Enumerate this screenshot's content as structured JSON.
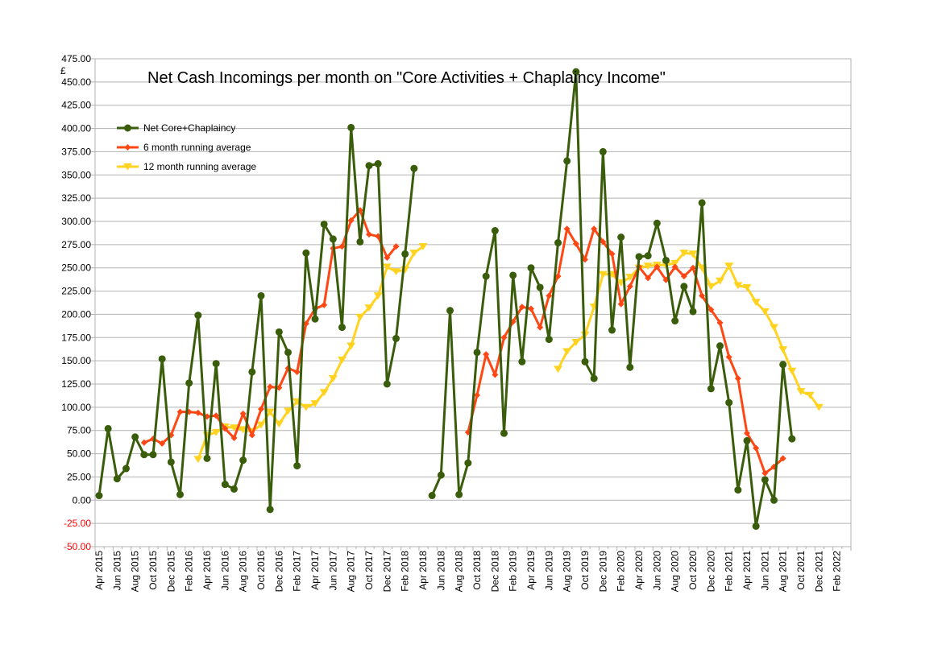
{
  "chart_data": {
    "type": "line",
    "title": "Net Cash Incomings per month on \"Core Activities + Chaplaincy Income\"",
    "ylabel": "£",
    "xlabel": "",
    "ylim": [
      -50,
      475
    ],
    "ytick_step": 25,
    "grid": true,
    "legend_position": "top-left",
    "x_tick_labels": [
      "Apr 2015",
      "Jun 2015",
      "Aug 2015",
      "Oct 2015",
      "Dec 2015",
      "Feb 2016",
      "Apr 2016",
      "Jun 2016",
      "Aug 2016",
      "Oct 2016",
      "Dec 2016",
      "Feb 2017",
      "Apr 2017",
      "Jun 2017",
      "Aug 2017",
      "Oct 2017",
      "Dec 2017",
      "Feb 2018",
      "Apr 2018",
      "Jun 2018",
      "Aug 2018",
      "Oct 2018",
      "Dec 2018",
      "Feb 2019",
      "Apr 2019",
      "Jun 2019",
      "Aug 2019",
      "Oct 2019",
      "Dec 2019",
      "Feb 2020",
      "Apr 2020",
      "Jun 2020",
      "Aug 2020",
      "Oct 2020",
      "Dec 2020",
      "Feb 2021",
      "Apr 2021",
      "Jun 2021",
      "Aug 2021",
      "Oct 2021",
      "Dec 2021",
      "Feb 2022"
    ],
    "x_start": "2015-04",
    "x_months": 84,
    "series": [
      {
        "name": "Net Core+Chaplaincy",
        "color": "#3a5d0b",
        "marker": "circle",
        "start": "2015-04",
        "values": [
          5,
          77,
          23,
          34,
          68,
          49,
          49,
          152,
          41,
          6,
          126,
          199,
          45,
          147,
          17,
          12,
          43,
          138,
          220,
          -10,
          181,
          159,
          37,
          266,
          195,
          297,
          281,
          186,
          401,
          278,
          360,
          362,
          125,
          174,
          265,
          357,
          null,
          5,
          27,
          204,
          6,
          40,
          159,
          241,
          290,
          72,
          242,
          149,
          250,
          229,
          173,
          277,
          365,
          461,
          149,
          131,
          375,
          183,
          283,
          143,
          262,
          263,
          298,
          258,
          193,
          230,
          203,
          320,
          120,
          166,
          105,
          11,
          64,
          -28,
          22,
          0,
          146,
          66
        ]
      },
      {
        "name": "6 month running average",
        "color": "#ff4714",
        "marker": "diamond",
        "start": "2015-09",
        "values": [
          62,
          66,
          61,
          70,
          95,
          95,
          94,
          90,
          91,
          77,
          67,
          93,
          70,
          98,
          122,
          121,
          142,
          138,
          190,
          206,
          210,
          271,
          273,
          301,
          312,
          286,
          284,
          261,
          273,
          null,
          null,
          null,
          null,
          null,
          null,
          null,
          73,
          113,
          157,
          135,
          175,
          192,
          208,
          206,
          186,
          220,
          241,
          292,
          276,
          259,
          292,
          278,
          265,
          211,
          230,
          251,
          239,
          251,
          237,
          251,
          241,
          250,
          220,
          205,
          191,
          154,
          131,
          72,
          56,
          29,
          36,
          45
        ]
      },
      {
        "name": "12 month running average",
        "color": "#ffd320",
        "marker": "triangle-down",
        "start": "2016-03",
        "values": [
          44,
          70,
          73,
          79,
          78,
          76,
          74,
          81,
          95,
          82,
          96,
          106,
          100,
          104,
          116,
          131,
          151,
          166,
          197,
          207,
          220,
          251,
          246,
          248,
          266,
          273,
          null,
          null,
          null,
          null,
          null,
          null,
          null,
          null,
          null,
          null,
          null,
          null,
          null,
          null,
          141,
          160,
          170,
          178,
          208,
          243,
          243,
          234,
          240,
          250,
          252,
          253,
          253,
          255,
          266,
          265,
          250,
          230,
          236,
          252,
          231,
          229,
          213,
          203,
          186,
          162,
          139,
          117,
          113,
          100
        ]
      }
    ]
  }
}
